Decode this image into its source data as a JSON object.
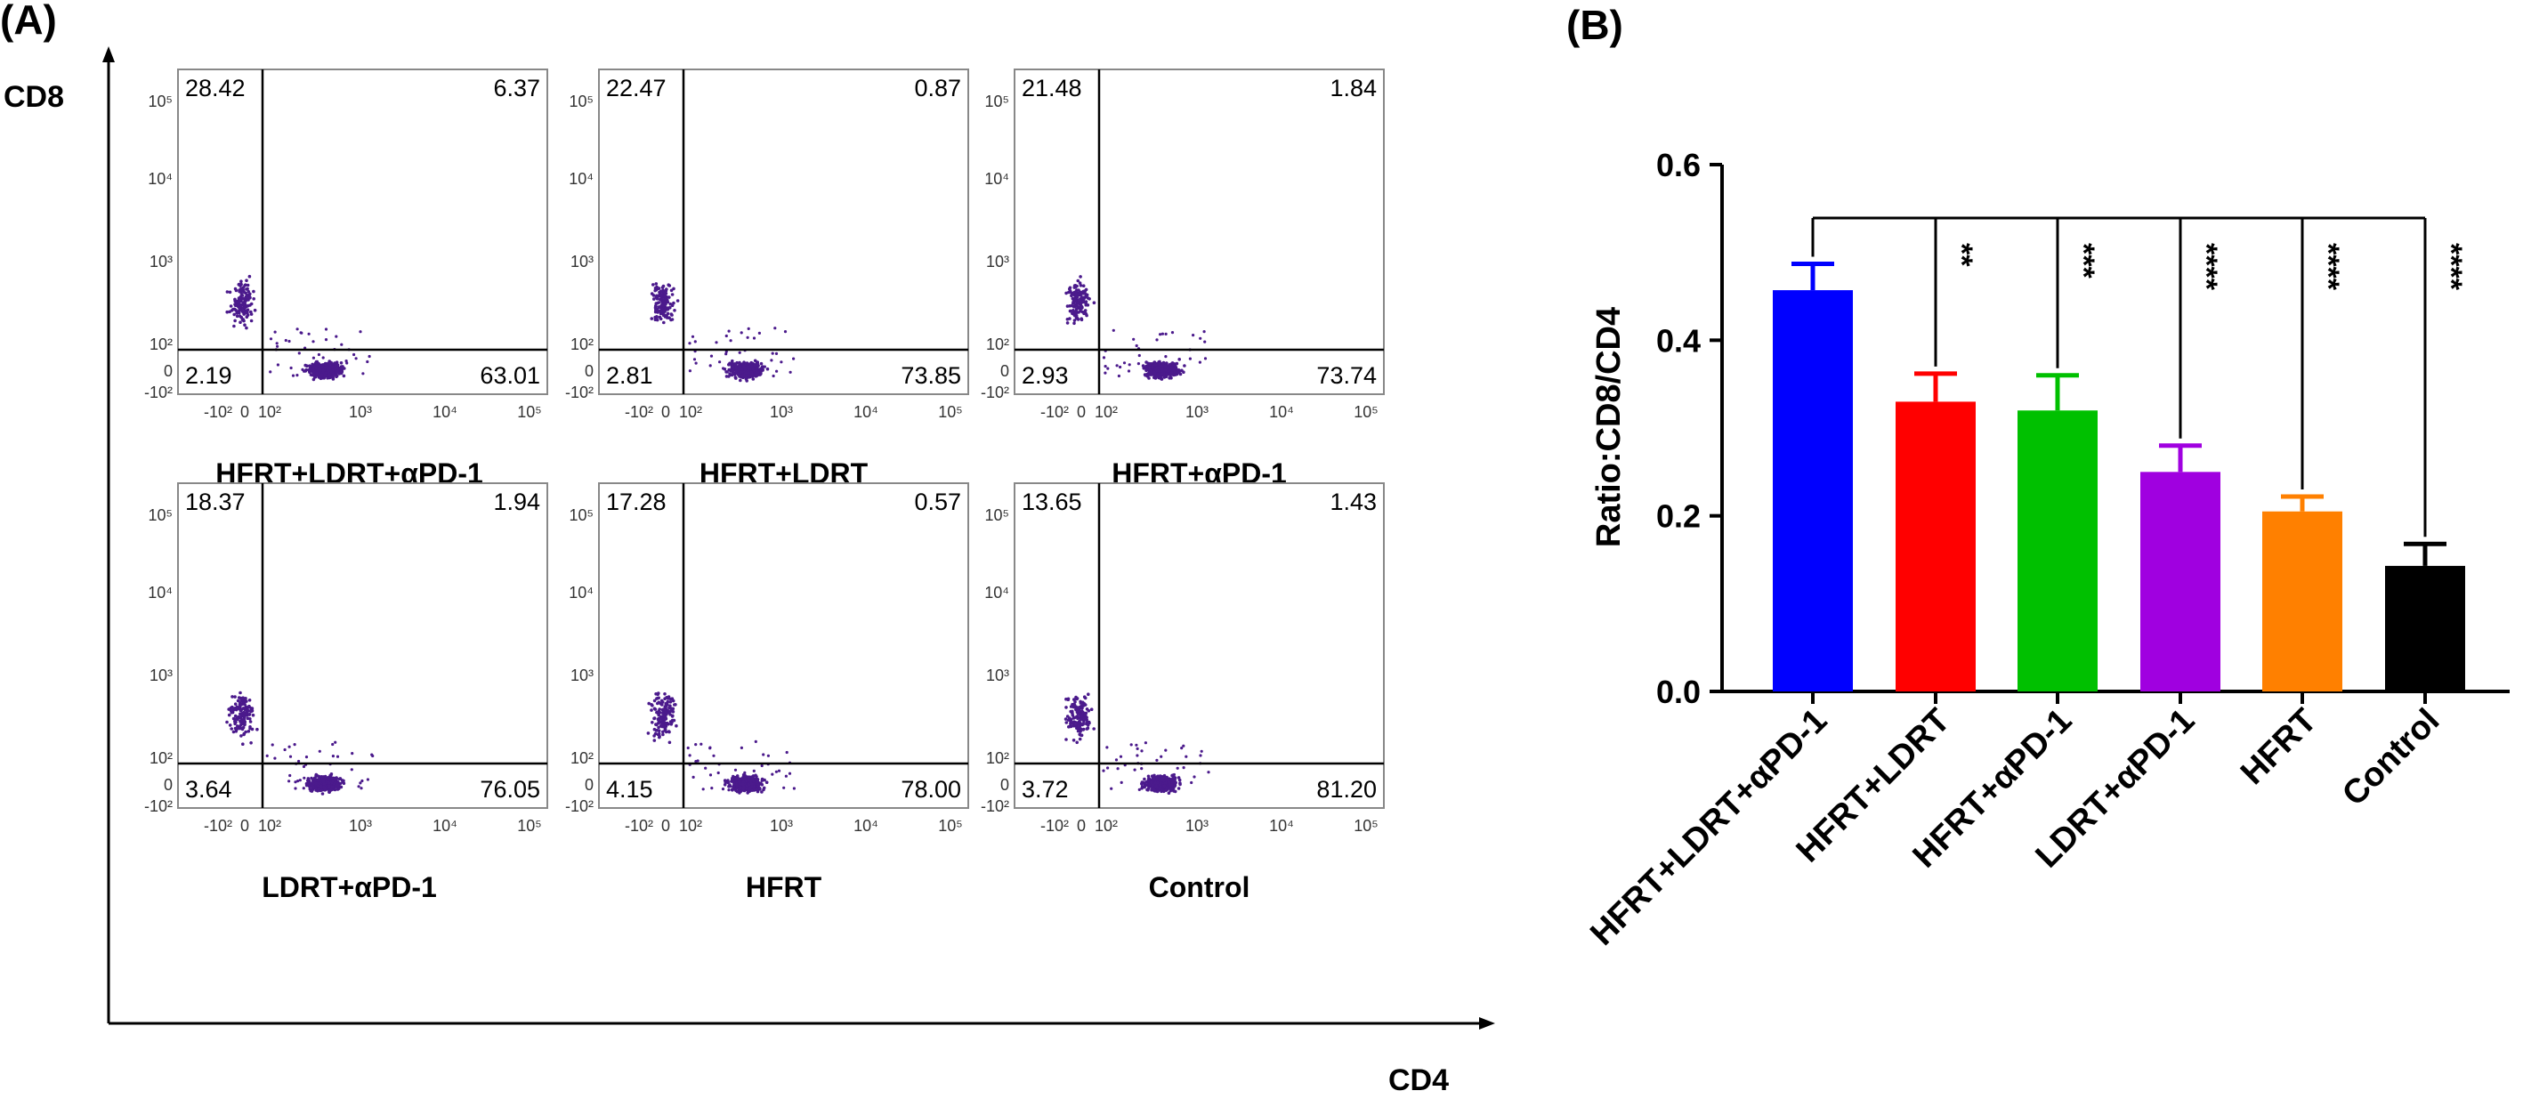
{
  "panel_a": {
    "label": "(A)",
    "x_axis_label": "CD4",
    "y_axis_label": "CD8",
    "x_ticks": [
      "-10²",
      "0",
      "10²",
      "10³",
      "10⁴",
      "10⁵"
    ],
    "y_ticks": [
      "10⁵",
      "10⁴",
      "10³",
      "10²",
      "0",
      "-10²"
    ],
    "plots": [
      {
        "title": "HFRT+LDRT+αPD-1",
        "q_ul": "28.42",
        "q_ur": "6.37",
        "q_ll": "2.19",
        "q_lr": "63.01"
      },
      {
        "title": "HFRT+LDRT",
        "q_ul": "22.47",
        "q_ur": "0.87",
        "q_ll": "2.81",
        "q_lr": "73.85"
      },
      {
        "title": "HFRT+αPD-1",
        "q_ul": "21.48",
        "q_ur": "1.84",
        "q_ll": "2.93",
        "q_lr": "73.74"
      },
      {
        "title": "LDRT+αPD-1",
        "q_ul": "18.37",
        "q_ur": "1.94",
        "q_ll": "3.64",
        "q_lr": "76.05"
      },
      {
        "title": "HFRT",
        "q_ul": "17.28",
        "q_ur": "0.57",
        "q_ll": "4.15",
        "q_lr": "78.00"
      },
      {
        "title": "Control",
        "q_ul": "13.65",
        "q_ur": "1.43",
        "q_ll": "3.72",
        "q_lr": "81.20"
      }
    ],
    "dot_color": "#4b1a8c"
  },
  "panel_b": {
    "label": "(B)"
  },
  "chart_data": {
    "type": "bar",
    "title": "",
    "xlabel": "",
    "ylabel": "Ratio:CD8/CD4",
    "ylim": [
      0,
      0.6
    ],
    "yticks": [
      0.0,
      0.2,
      0.4,
      0.6
    ],
    "ytick_labels": [
      "0.0",
      "0.2",
      "0.4",
      "0.6"
    ],
    "categories": [
      "HFRT+LDRT+αPD-1",
      "HFRT+LDRT",
      "HFRT+αPD-1",
      "LDRT+αPD-1",
      "HFRT",
      "Control"
    ],
    "values": [
      0.457,
      0.33,
      0.32,
      0.25,
      0.205,
      0.143
    ],
    "errors": [
      0.03,
      0.032,
      0.04,
      0.03,
      0.017,
      0.025
    ],
    "colors": [
      "#0000ff",
      "#ff0000",
      "#00c000",
      "#a000e0",
      "#ff8000",
      "#000000"
    ],
    "significance": [
      "",
      "**",
      "***",
      "****",
      "****",
      "****"
    ]
  }
}
